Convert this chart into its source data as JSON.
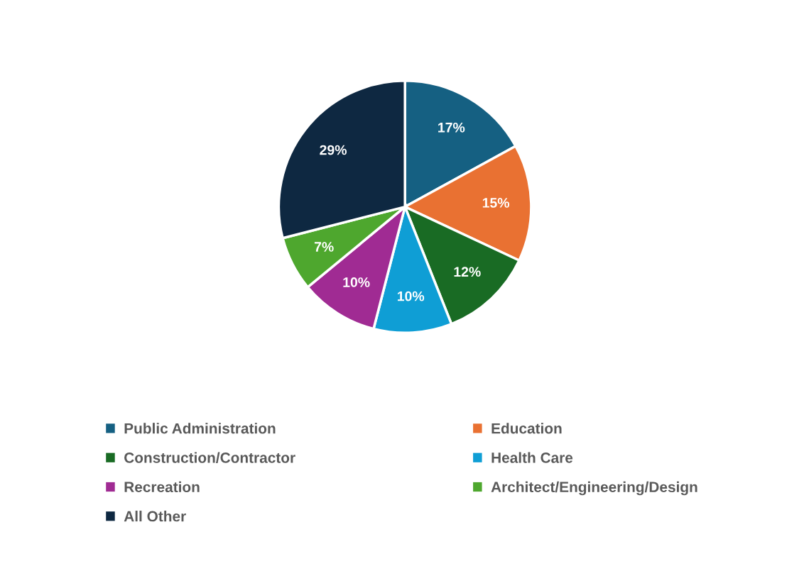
{
  "chart_data": {
    "type": "pie",
    "categories": [
      "Public Administration",
      "Education",
      "Construction/Contractor",
      "Health Care",
      "Recreation",
      "Architect/Engineering/Design",
      "All Other"
    ],
    "values": [
      17,
      15,
      12,
      10,
      10,
      7,
      29
    ],
    "colors": [
      "#156082",
      "#e97132",
      "#196b24",
      "#0f9ed5",
      "#a02b93",
      "#4ea72e",
      "#0e2841"
    ],
    "value_labels": [
      "17%",
      "15%",
      "12%",
      "10%",
      "10%",
      "7%",
      "29%"
    ],
    "legend": "bottom"
  }
}
